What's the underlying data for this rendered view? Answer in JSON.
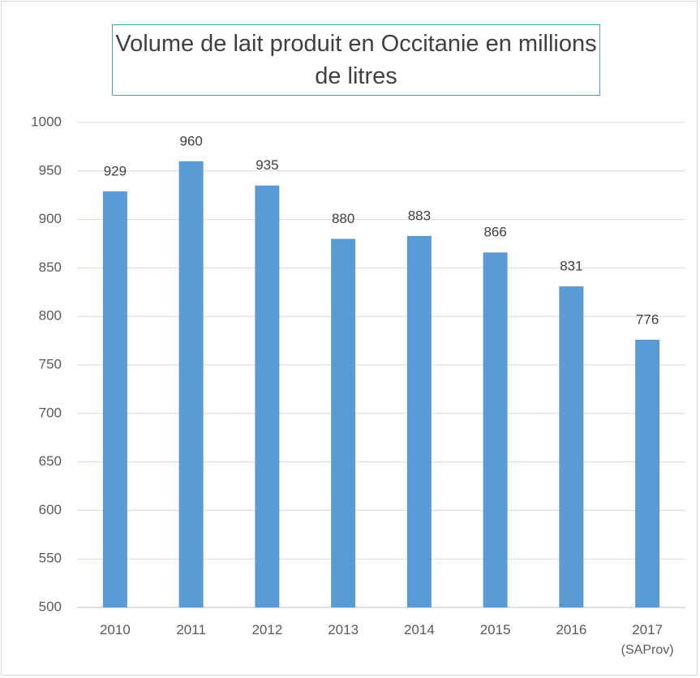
{
  "chart_data": {
    "type": "bar",
    "title": "Volume de lait produit en Occitanie en millions de litres",
    "categories": [
      "2010",
      "2011",
      "2012",
      "2013",
      "2014",
      "2015",
      "2016",
      "2017 (SAProv)"
    ],
    "values": [
      929,
      960,
      935,
      880,
      883,
      866,
      831,
      776
    ],
    "color": "#5b9bd5",
    "ylim": [
      500,
      1000
    ],
    "yticks": [
      500,
      550,
      600,
      650,
      700,
      750,
      800,
      850,
      900,
      950,
      1000
    ],
    "grid": true
  }
}
